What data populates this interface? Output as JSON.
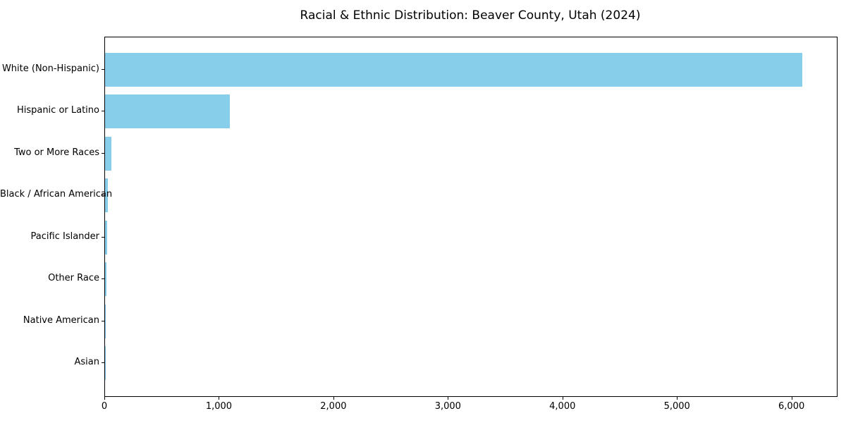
{
  "chart_data": {
    "type": "bar",
    "orientation": "horizontal",
    "title": "Racial & Ethnic Distribution: Beaver County, Utah (2024)",
    "categories": [
      "White (Non-Hispanic)",
      "Hispanic or Latino",
      "Two or More Races",
      "Black / African American",
      "Pacific Islander",
      "Other Race",
      "Native American",
      "Asian"
    ],
    "values": [
      6090,
      1090,
      55,
      25,
      16,
      10,
      4,
      2
    ],
    "bar_color": "#87CEEB",
    "xlabel": "",
    "ylabel": "",
    "xlim": [
      0,
      6390
    ],
    "x_ticks": [
      0,
      1000,
      2000,
      3000,
      4000,
      5000,
      6000
    ],
    "x_tick_labels": [
      "0",
      "1,000",
      "2,000",
      "3,000",
      "4,000",
      "5,000",
      "6,000"
    ],
    "grid": false,
    "legend": false
  }
}
